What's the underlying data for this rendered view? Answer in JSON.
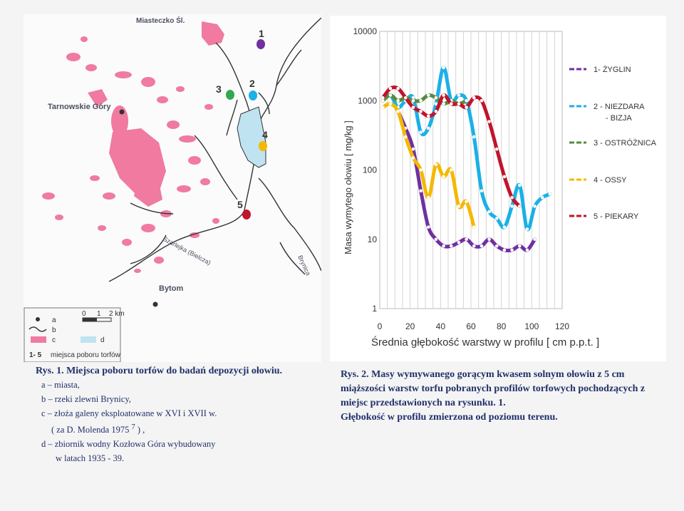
{
  "map": {
    "town_labels": [
      "Miasteczko Śl.",
      "Tarnowskie Góry",
      "Bytom"
    ],
    "river_labels": [
      "Szarlejka (Bielcza)",
      "Brynica"
    ],
    "site_numbers": [
      "1",
      "2",
      "3",
      "4",
      "5"
    ],
    "site_colors": [
      "#7030a0",
      "#1ab0e8",
      "#33a853",
      "#f5b800",
      "#c0142c"
    ],
    "scale_ticks": [
      "0",
      "1",
      "2 km"
    ],
    "legend": {
      "a": "a",
      "b": "b",
      "c": "c",
      "d": "d",
      "sites_key": "1- 5",
      "sites_label": "miejsca poboru torfów"
    }
  },
  "chart_data": {
    "type": "line",
    "ylabel": "Masa wymytego ołowiu    [ mg/kg ]",
    "xlabel": "Średnia głębokość warstwy w profilu  [ cm p.p.t. ]",
    "y_scale": "log",
    "ylim": [
      1,
      10000
    ],
    "xlim": [
      0,
      120
    ],
    "y_ticks": [
      "10000",
      "1000",
      "100",
      "10",
      "1"
    ],
    "x_ticks": [
      "0",
      "20",
      "40",
      "60",
      "80",
      "100",
      "120"
    ],
    "grid": "vertical",
    "legend_position": "right",
    "series": [
      {
        "name": "1- ŻYGLIN",
        "color": "#7030a0",
        "x": [
          12,
          17,
          22,
          27,
          32,
          37,
          42,
          47,
          52,
          57,
          62,
          67,
          72,
          77,
          82,
          87,
          92,
          97,
          102
        ],
        "y": [
          700,
          400,
          200,
          50,
          15,
          10,
          8,
          8,
          9,
          10,
          8,
          8,
          10,
          8,
          7,
          7,
          8,
          7,
          10
        ]
      },
      {
        "name": "2 - NIEZDARA\n - BIZJA",
        "color": "#1ab0e8",
        "x": [
          2,
          7,
          12,
          17,
          22,
          27,
          32,
          37,
          42,
          47,
          52,
          57,
          62,
          67,
          72,
          77,
          82,
          87,
          92,
          97,
          102,
          107,
          112
        ],
        "y": [
          1000,
          1200,
          800,
          1000,
          1100,
          350,
          400,
          900,
          3000,
          1000,
          1200,
          1000,
          300,
          50,
          25,
          20,
          15,
          30,
          60,
          14,
          30,
          40,
          45
        ]
      },
      {
        "name": "3 - OSTRÓŻNICA",
        "color": "#5a8a3a",
        "x": [
          2,
          7,
          12,
          17,
          22,
          27,
          32,
          37,
          42,
          47,
          52,
          57
        ],
        "y": [
          1000,
          1200,
          1000,
          1100,
          1000,
          1000,
          1200,
          1100,
          900,
          1000,
          900,
          1000
        ]
      },
      {
        "name": "4 - OSSY",
        "color": "#f5b800",
        "x": [
          2,
          7,
          12,
          17,
          22,
          27,
          32,
          37,
          42,
          47,
          52,
          57,
          62
        ],
        "y": [
          800,
          900,
          700,
          300,
          150,
          100,
          40,
          120,
          80,
          100,
          30,
          35,
          15
        ]
      },
      {
        "name": "5 - PIEKARY",
        "color": "#c0142c",
        "x": [
          2,
          7,
          12,
          17,
          22,
          27,
          32,
          37,
          42,
          47,
          52,
          57,
          62,
          67,
          72,
          77,
          82,
          87,
          92
        ],
        "y": [
          1100,
          1500,
          1500,
          1100,
          800,
          700,
          600,
          700,
          1200,
          900,
          900,
          800,
          1100,
          1000,
          500,
          200,
          80,
          40,
          30
        ]
      }
    ]
  },
  "caption_left": {
    "title": "Rys. 1.   Miejsca poboru torfów do badań depozycji ołowiu.",
    "a": "a  –  miasta,",
    "b": "b  –  rzeki zlewni Brynicy,",
    "c": "c  –   złoża galeny eksploatowane  w XVI i XVII w.",
    "c_ref_pre": "( za D. Molenda 1975 ",
    "c_ref_sup": "7",
    "c_ref_post": " ) ,",
    "d": "d  –  zbiornik wodny Kozłowa  Góra wybudowany",
    "d2": "w latach 1935 - 39."
  },
  "caption_right": {
    "text": "Rys. 2.  Masy wymywanego gorącym kwasem solnym  ołowiu z 5 cm miąższości warstw torfu pobranych  profilów torfowych pochodzących z miejsc przedstawionych na rysunku. 1.",
    "text2": "Głębokość w profilu zmierzona od poziomu terenu."
  }
}
